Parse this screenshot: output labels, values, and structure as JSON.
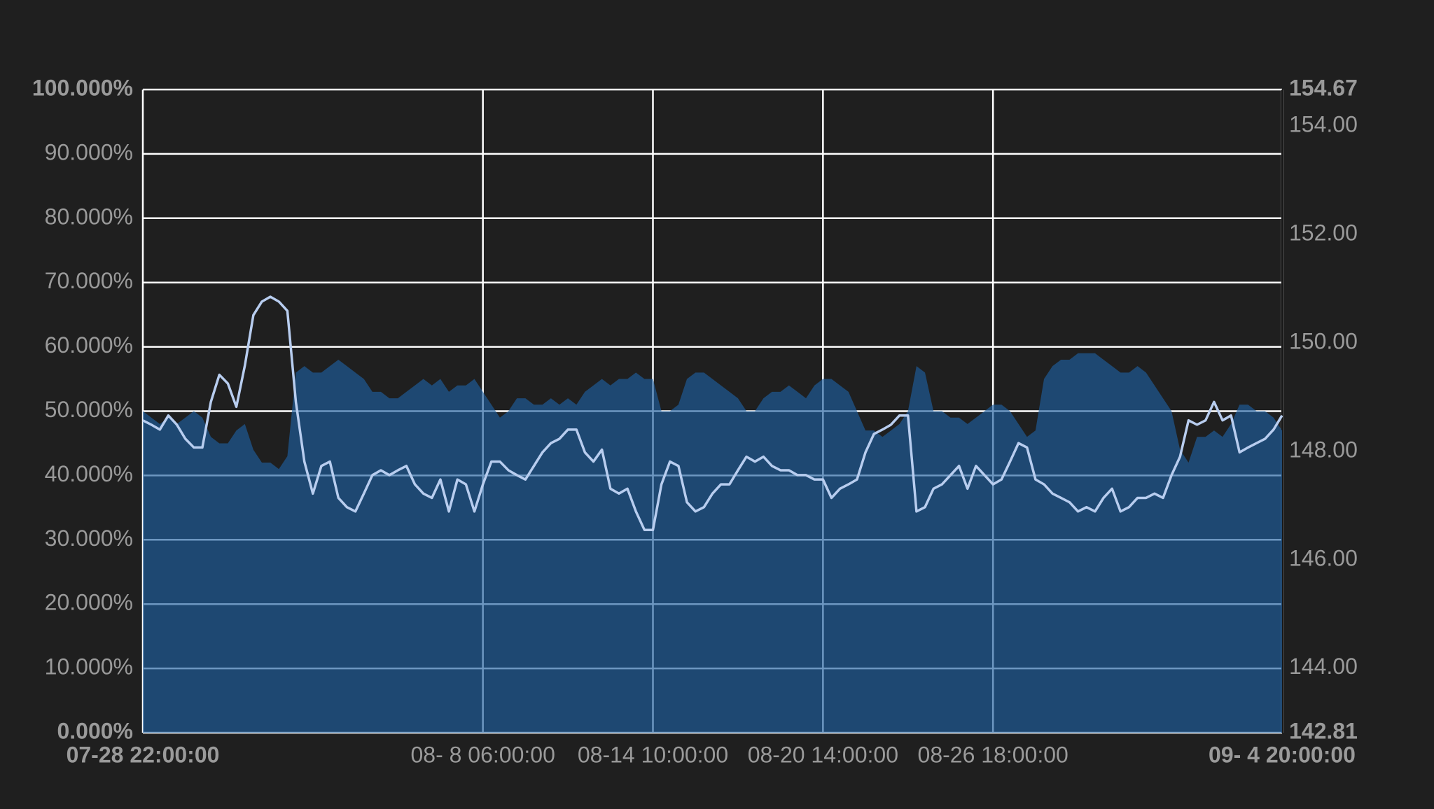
{
  "chart_data": {
    "type": "area",
    "grid": true,
    "background": "#1f1f1f",
    "grid_color": "#ffffff",
    "x": [
      0,
      1,
      2,
      3,
      4,
      5,
      6,
      7,
      8,
      9,
      10,
      11,
      12,
      13,
      14,
      15,
      16,
      17,
      18,
      19,
      20,
      21,
      22,
      23,
      24,
      25,
      26,
      27,
      28,
      29,
      30,
      31,
      32,
      33,
      34,
      35,
      36,
      37,
      38,
      39,
      40,
      41,
      42,
      43,
      44,
      45,
      46,
      47,
      48,
      49,
      50,
      51,
      52,
      53,
      54,
      55,
      56,
      57,
      58,
      59,
      60,
      61,
      62,
      63,
      64,
      65,
      66,
      67,
      68,
      69,
      70,
      71,
      72,
      73,
      74,
      75,
      76,
      77,
      78,
      79,
      80,
      81,
      82,
      83,
      84,
      85,
      86,
      87,
      88,
      89,
      90,
      91,
      92,
      93,
      94,
      95,
      96,
      97,
      98,
      99,
      100,
      101,
      102,
      103,
      104,
      105,
      106,
      107,
      108,
      109,
      110,
      111,
      112,
      113,
      114,
      115,
      116,
      117,
      118,
      119,
      120,
      121,
      122,
      123,
      124,
      125,
      126,
      127,
      128,
      129,
      130,
      131,
      132,
      133,
      134
    ],
    "xlim": [
      0,
      134
    ],
    "xticks": [
      {
        "value": 0,
        "label": "07-28 22:00:00"
      },
      {
        "value": 40,
        "label": "08- 8 06:00:00"
      },
      {
        "value": 60,
        "label": "08-14 10:00:00"
      },
      {
        "value": 80,
        "label": "08-20 14:00:00"
      },
      {
        "value": 100,
        "label": "08-26 18:00:00"
      },
      {
        "value": 134,
        "label": "09- 4 20:00:00"
      }
    ],
    "ylim": [
      0,
      100
    ],
    "yticks": [
      {
        "value": 0,
        "label": "0.000%"
      },
      {
        "value": 10,
        "label": "10.000%"
      },
      {
        "value": 20,
        "label": "20.000%"
      },
      {
        "value": 30,
        "label": "30.000%"
      },
      {
        "value": 40,
        "label": "40.000%"
      },
      {
        "value": 50,
        "label": "50.000%"
      },
      {
        "value": 60,
        "label": "60.000%"
      },
      {
        "value": 70,
        "label": "70.000%"
      },
      {
        "value": 80,
        "label": "80.000%"
      },
      {
        "value": 90,
        "label": "90.000%"
      },
      {
        "value": 100,
        "label": "100.000%"
      }
    ],
    "y2lim": [
      142.81,
      154.67
    ],
    "y2ticks": [
      142.81,
      {
        "value": 144,
        "label": "144.00"
      },
      {
        "value": 146,
        "label": "146.00"
      },
      {
        "value": 148,
        "label": "148.00"
      },
      {
        "value": 150,
        "label": "150.00"
      },
      {
        "value": 152,
        "label": "152.00"
      },
      {
        "value": 154,
        "label": "154.00"
      },
      154.67
    ],
    "series": [
      {
        "type": "area",
        "color": "rgba(30,95,160,0.65)",
        "values": [
          50,
          49,
          48,
          49,
          48,
          49,
          50,
          49,
          46,
          45,
          45,
          47,
          48,
          44,
          42,
          42,
          41,
          43,
          56,
          57,
          56,
          56,
          57,
          58,
          57,
          56,
          55,
          53,
          53,
          52,
          52,
          53,
          54,
          55,
          54,
          55,
          53,
          54,
          54,
          55,
          53,
          51,
          49,
          50,
          52,
          52,
          51,
          51,
          52,
          51,
          52,
          51,
          53,
          54,
          55,
          54,
          55,
          55,
          56,
          55,
          55,
          50,
          50,
          51,
          55,
          56,
          56,
          55,
          54,
          53,
          52,
          50,
          50,
          52,
          53,
          53,
          54,
          53,
          52,
          54,
          55,
          55,
          54,
          53,
          50,
          47,
          47,
          46,
          47,
          48,
          50,
          57,
          56,
          50,
          50,
          49,
          49,
          48,
          49,
          50,
          51,
          51,
          50,
          48,
          46,
          47,
          55,
          57,
          58,
          58,
          59,
          59,
          59,
          58,
          57,
          56,
          56,
          57,
          56,
          54,
          52,
          50,
          44,
          42,
          46,
          46,
          47,
          46,
          48,
          51,
          51,
          50,
          50,
          49,
          47
        ]
      },
      {
        "type": "line",
        "axis": "y2",
        "color": "#b8cdef",
        "values": [
          148.57,
          148.49,
          148.4,
          148.66,
          148.49,
          148.23,
          148.07,
          148.07,
          148.91,
          149.41,
          149.25,
          148.82,
          149.58,
          150.51,
          150.76,
          150.85,
          150.76,
          150.59,
          148.91,
          147.81,
          147.22,
          147.73,
          147.81,
          147.14,
          146.97,
          146.89,
          147.22,
          147.56,
          147.65,
          147.56,
          147.65,
          147.73,
          147.39,
          147.22,
          147.14,
          147.48,
          146.89,
          147.48,
          147.39,
          146.89,
          147.39,
          147.81,
          147.81,
          147.65,
          147.56,
          147.48,
          147.73,
          147.98,
          148.15,
          148.23,
          148.4,
          148.4,
          147.98,
          147.81,
          148.03,
          147.31,
          147.22,
          147.31,
          146.89,
          146.55,
          146.55,
          147.39,
          147.81,
          147.73,
          147.06,
          146.89,
          146.97,
          147.22,
          147.39,
          147.39,
          147.65,
          147.9,
          147.81,
          147.9,
          147.73,
          147.65,
          147.65,
          147.56,
          147.56,
          147.48,
          147.48,
          147.14,
          147.31,
          147.39,
          147.48,
          147.98,
          148.32,
          148.4,
          148.49,
          148.66,
          148.66,
          146.89,
          146.97,
          147.31,
          147.39,
          147.56,
          147.73,
          147.31,
          147.73,
          147.56,
          147.39,
          147.48,
          147.81,
          148.15,
          148.07,
          147.48,
          147.39,
          147.22,
          147.14,
          147.06,
          146.89,
          146.97,
          146.89,
          147.14,
          147.31,
          146.89,
          146.97,
          147.14,
          147.14,
          147.22,
          147.14,
          147.56,
          147.9,
          148.57,
          148.49,
          148.57,
          148.91,
          148.57,
          148.66,
          147.98,
          148.07,
          148.15,
          148.23,
          148.4,
          148.66
        ]
      }
    ]
  }
}
